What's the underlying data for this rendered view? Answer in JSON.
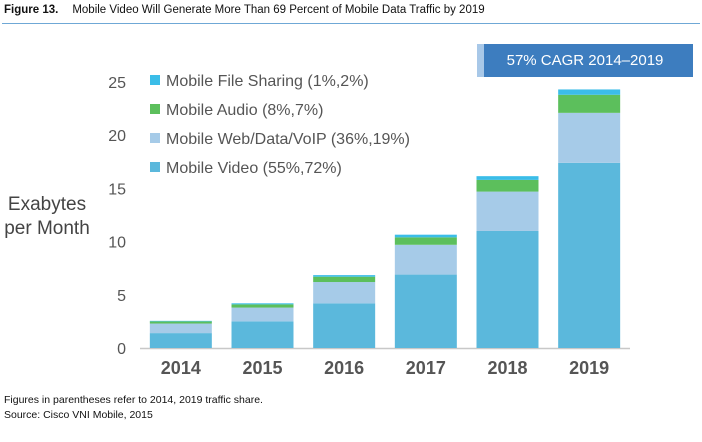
{
  "figure": {
    "label": "Figure 13.",
    "title": "Mobile Video Will Generate More Than 69 Percent of Mobile Data Traffic by 2019"
  },
  "footnote": {
    "line1": "Figures in parentheses refer to 2014, 2019 traffic share.",
    "line2": "Source: Cisco VNI Mobile, 2015"
  },
  "callout": "57% CAGR 2014–2019",
  "chart_data": {
    "type": "bar",
    "stacked": true,
    "title": "Mobile Video Will Generate More Than 69 Percent of Mobile Data Traffic by 2019",
    "ylabel": "Exabytes per Month",
    "ylabel_lines": [
      "Exabytes",
      "per Month"
    ],
    "xlabel": "",
    "ylim": [
      0,
      25
    ],
    "yticks": [
      0,
      5,
      10,
      15,
      20,
      25
    ],
    "categories": [
      "2014",
      "2015",
      "2016",
      "2017",
      "2018",
      "2019"
    ],
    "series": [
      {
        "name": "Mobile Video (55%,72%)",
        "color": "#5bb8dc",
        "values": [
          1.4,
          2.5,
          4.2,
          6.9,
          11.0,
          17.4
        ]
      },
      {
        "name": "Mobile Web/Data/VoIP (36%,19%)",
        "color": "#a6cbe8",
        "values": [
          0.9,
          1.3,
          2.0,
          2.8,
          3.7,
          4.7
        ]
      },
      {
        "name": "Mobile Audio (8%,7%)",
        "color": "#5cbf5c",
        "values": [
          0.2,
          0.3,
          0.5,
          0.7,
          1.1,
          1.7
        ]
      },
      {
        "name": "Mobile File Sharing (1%,2%)",
        "color": "#3bbde8",
        "values": [
          0.05,
          0.1,
          0.15,
          0.25,
          0.35,
          0.5
        ]
      }
    ],
    "legend_order": [
      "Mobile File Sharing (1%,2%)",
      "Mobile Audio (8%,7%)",
      "Mobile Web/Data/VoIP (36%,19%)",
      "Mobile Video (55%,72%)"
    ],
    "legend_position": "top-left"
  }
}
